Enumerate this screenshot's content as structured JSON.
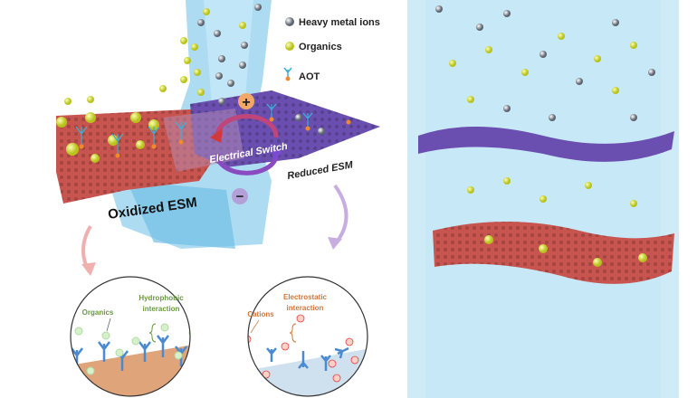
{
  "legend": {
    "items": [
      {
        "label": "Heavy metal ions",
        "icon": "grey-sphere-icon"
      },
      {
        "label": "Organics",
        "icon": "yellow-sphere-icon"
      },
      {
        "label": "AOT",
        "icon": "aot-molecule-icon"
      }
    ]
  },
  "left_panel": {
    "plus_sign": "+",
    "minus_sign": "−",
    "switch_label": "Electrical Switch",
    "reduced_label": "Reduced ESM",
    "oxidized_label": "Oxidized ESM"
  },
  "inset_hydrophobic": {
    "organics_label": "Organics",
    "interaction_line1": "Hydrophobic",
    "interaction_line2": "interaction"
  },
  "inset_electrostatic": {
    "cations_label": "Cations",
    "interaction_line1": "Electrostatic",
    "interaction_line2": "interaction"
  },
  "colors": {
    "water": "#8fd0ee",
    "oxidized_membrane": "#c8544f",
    "reduced_membrane": "#6a4fb0",
    "organics": "#d8e23a",
    "metal_ions": "#9aa0a8",
    "hydrophobic_text": "#6a9a40",
    "electrostatic_text": "#d0763a"
  }
}
